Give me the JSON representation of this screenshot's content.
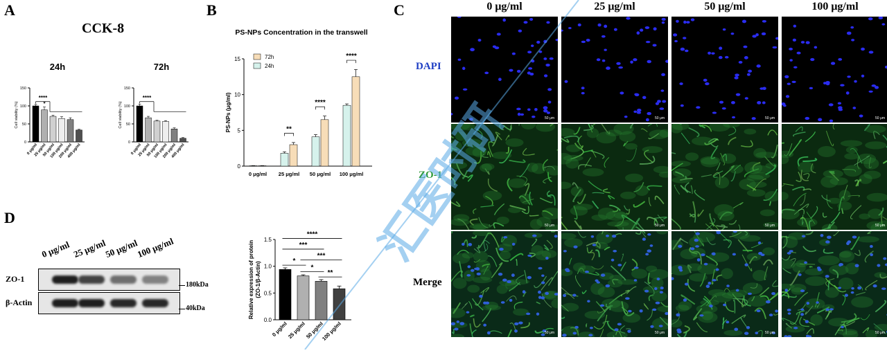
{
  "panelA": {
    "letter": "A",
    "title": "CCK-8",
    "charts": [
      {
        "type": "bar",
        "title": "24h",
        "ylabel": "Cell viability (%)",
        "ylim": [
          0,
          150
        ],
        "yticks": [
          0,
          50,
          100,
          150
        ],
        "categories": [
          "0 μg/ml",
          "25 μg/ml",
          "50 μg/ml",
          "100 μg/ml",
          "200 μg/ml",
          "400 μg/ml"
        ],
        "values": [
          100,
          89,
          71,
          65,
          62,
          33
        ],
        "errors": [
          4,
          8,
          3,
          5,
          5,
          2
        ],
        "sig": [
          "****",
          "*"
        ]
      },
      {
        "type": "bar",
        "title": "72h",
        "ylabel": "Cell viability (%)",
        "ylim": [
          0,
          150
        ],
        "yticks": [
          0,
          50,
          100,
          150
        ],
        "categories": [
          "0 μg/ml",
          "25 μg/ml",
          "50 μg/ml",
          "100 μg/ml",
          "200 μg/ml",
          "400 μg/ml"
        ],
        "values": [
          100,
          67,
          58,
          57,
          36,
          10
        ],
        "errors": [
          5,
          4,
          2,
          2,
          3,
          2
        ],
        "sig": [
          "****"
        ]
      }
    ]
  },
  "panelB": {
    "letter": "B",
    "chart_data": {
      "type": "bar",
      "title": "PS-NPs Concentration in the transwell",
      "ylabel": "PS-NPs (μg/ml)",
      "ylim": [
        0,
        15
      ],
      "yticks": [
        0,
        5,
        10,
        15
      ],
      "categories": [
        "0 μg/ml",
        "25 μg/ml",
        "50 μg/ml",
        "100 μg/ml"
      ],
      "series": [
        {
          "name": "24h",
          "values": [
            0.05,
            1.8,
            4.1,
            8.5
          ],
          "errors": [
            0.02,
            0.2,
            0.3,
            0.2
          ],
          "color": "#d6f2ec"
        },
        {
          "name": "72h",
          "values": [
            0.05,
            3.0,
            6.5,
            12.5
          ],
          "errors": [
            0.02,
            0.3,
            0.5,
            1.0
          ],
          "color": "#f7ddb8"
        }
      ],
      "sig": [
        "**",
        "****",
        "****"
      ]
    }
  },
  "panelC": {
    "letter": "C",
    "columns": [
      "0 μg/ml",
      "25 μg/ml",
      "50 μg/ml",
      "100 μg/ml"
    ],
    "rows": [
      "DAPI",
      "ZO-1",
      "Merge"
    ],
    "scale_bar": "50 μm"
  },
  "panelD": {
    "letter": "D",
    "blot_lanes": [
      "0 μg/ml",
      "25 μg/ml",
      "50 μg/ml",
      "100 μg/ml"
    ],
    "blot_rows": [
      {
        "label": "ZO-1",
        "mw": "180kDa",
        "intensity": [
          1.0,
          0.82,
          0.6,
          0.5
        ]
      },
      {
        "label": "β-Actin",
        "mw": "40kDa",
        "intensity": [
          1.0,
          1.0,
          0.95,
          0.95
        ]
      }
    ],
    "chart_data": {
      "type": "bar",
      "ylabel": "Relative expression of protein (ZO-1/β-Actin)",
      "ylim": [
        0,
        1.5
      ],
      "yticks": [
        "0.0",
        "0.5",
        "1.0",
        "1.5"
      ],
      "categories": [
        "0 μg/ml",
        "25 μg/ml",
        "50 μg/ml",
        "100 μg/ml"
      ],
      "values": [
        0.94,
        0.82,
        0.72,
        0.58
      ],
      "errors": [
        0.03,
        0.02,
        0.03,
        0.05
      ],
      "colors": [
        "#000000",
        "#b0b0b0",
        "#808080",
        "#404040"
      ],
      "sig": [
        "****",
        "***",
        "***",
        "*",
        "*",
        "**"
      ]
    }
  },
  "watermark": "汇医时研"
}
